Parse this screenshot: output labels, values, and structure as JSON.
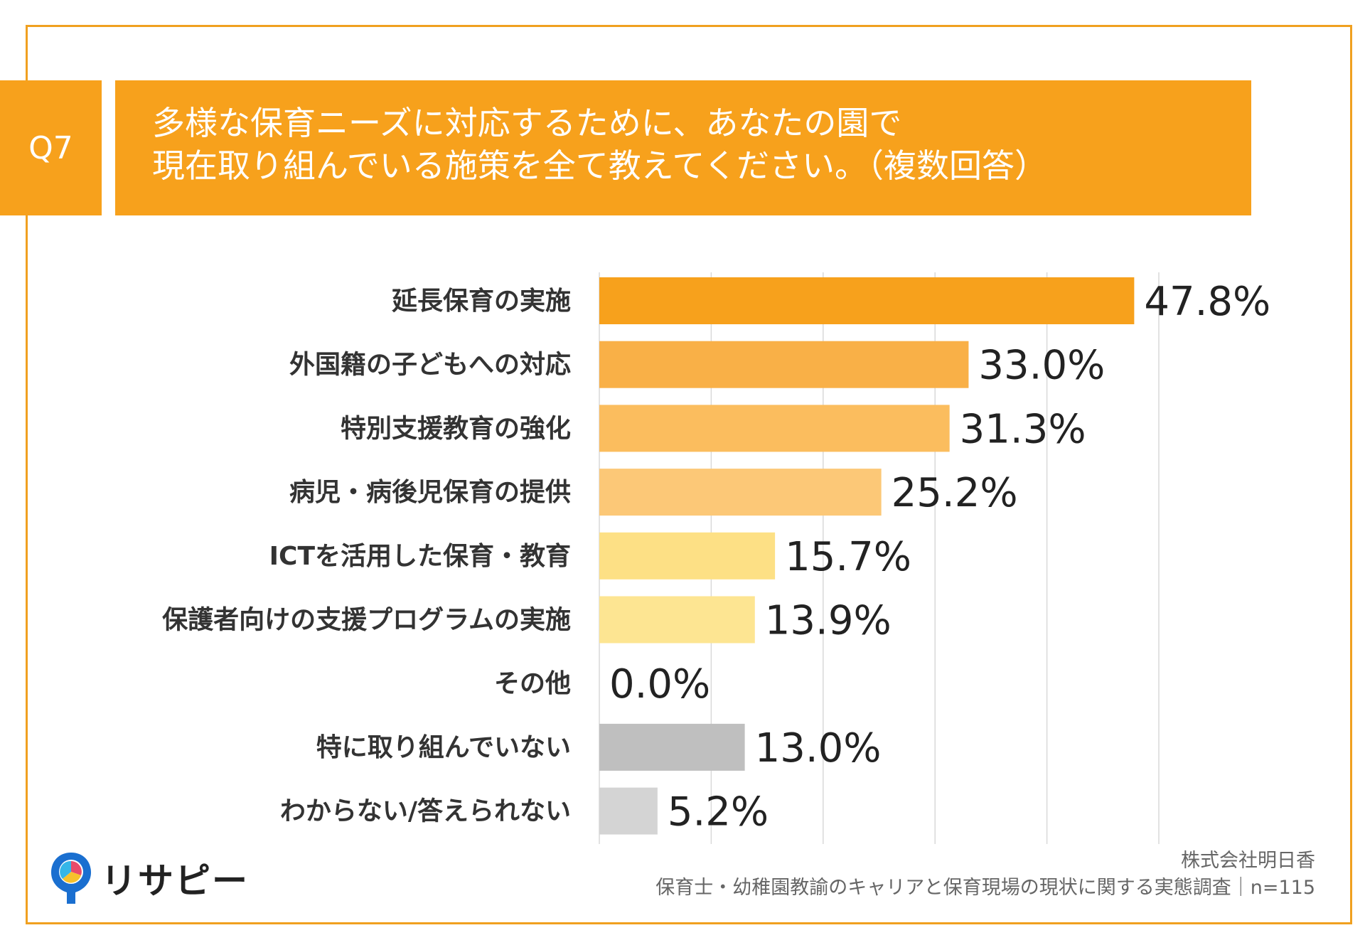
{
  "question": {
    "number": "Q7",
    "title_lines": [
      "多様な保育ニーズに対応するために、あなたの園で",
      "現在取り組んでいる施策を全て教えてください。（複数回答）"
    ]
  },
  "chart_data": {
    "type": "bar",
    "orientation": "horizontal",
    "categories": [
      "延長保育の実施",
      "外国籍の子どもへの対応",
      "特別支援教育の強化",
      "病児・病後児保育の提供",
      "ICTを活用した保育・教育",
      "保護者向けの支援プログラムの実施",
      "その他",
      "特に取り組んでいない",
      "わからない/答えられない"
    ],
    "values": [
      47.8,
      33.0,
      31.3,
      25.2,
      15.7,
      13.9,
      0.0,
      13.0,
      5.2
    ],
    "value_labels": [
      "47.8%",
      "33.0%",
      "31.3%",
      "25.2%",
      "15.7%",
      "13.9%",
      "0.0%",
      "13.0%",
      "5.2%"
    ],
    "bar_colors": [
      "#f7a11c",
      "#f9b047",
      "#fbbd5e",
      "#fcc877",
      "#fde085",
      "#fde592",
      "#fde592",
      "#bfbfbf",
      "#d4d4d4"
    ],
    "xlim": [
      0,
      50
    ],
    "x_ticks": [
      0,
      10,
      20,
      30,
      40,
      50
    ],
    "grid": true,
    "unit": "%"
  },
  "logo": {
    "text": "リサピー"
  },
  "footer": {
    "company": "株式会社明日香",
    "survey": "保育士・幼稚園教諭のキャリアと保育現場の現状に関する実態調査｜n=115"
  },
  "colors": {
    "accent": "#f7a11c",
    "frame": "#f0a020"
  }
}
